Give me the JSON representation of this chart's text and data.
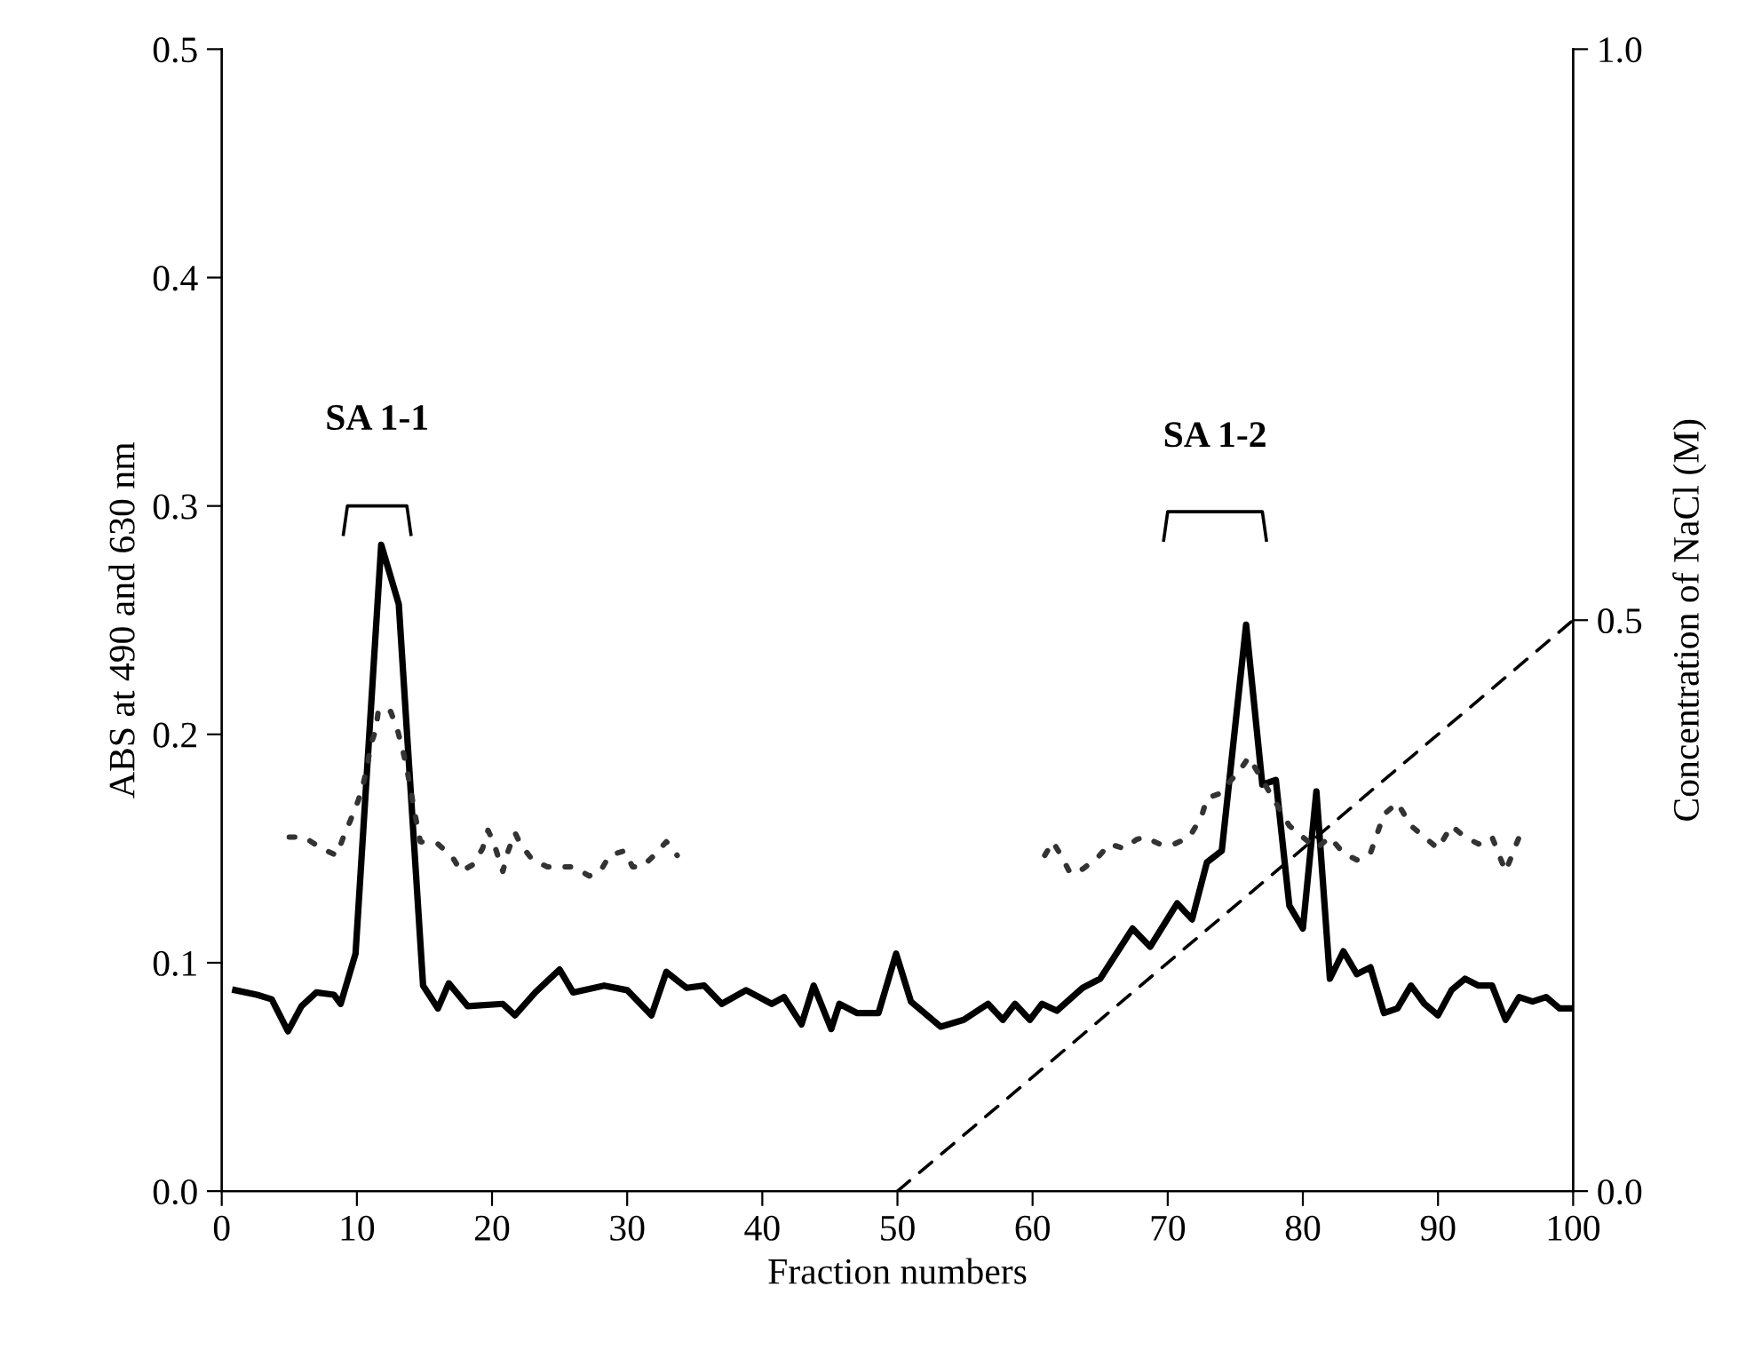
{
  "chart_data": {
    "type": "line",
    "xlabel": "Fraction numbers",
    "ylabel": "ABS at 490 and 630 nm",
    "y2label": "Concentration of NaCl (M)",
    "xlim": [
      0,
      100
    ],
    "xticks": [
      0,
      10,
      20,
      30,
      40,
      50,
      60,
      70,
      80,
      90,
      100
    ],
    "ylim": [
      0,
      0.5
    ],
    "yticks": [
      {
        "value": 0,
        "label": "0.0"
      },
      0.1,
      0.2,
      0.3,
      0.4,
      0.5
    ],
    "y2lim": [
      0,
      1.0
    ],
    "y2ticks": [
      {
        "value": 0,
        "label": "0.0"
      },
      0.5,
      {
        "value": 1,
        "label": "1.0"
      }
    ],
    "grid": false,
    "legend": false,
    "annotations": [
      "SA 1-1",
      "SA 1-2"
    ],
    "series": [
      {
        "color": "#000000",
        "line_style": "solid",
        "x": [
          1,
          2.6,
          3.7,
          4.9,
          5.9,
          7,
          8.3,
          8.8,
          9.9,
          11.8,
          13.1,
          14.9,
          16,
          16.8,
          18.2,
          20.8,
          21.7,
          23.2,
          25,
          26,
          28.3,
          30,
          31.8,
          32.9,
          34.4,
          35.7,
          37,
          38.8,
          40.7,
          41.6,
          42.9,
          43.8,
          45.1,
          45.7,
          47,
          48.6,
          49.9,
          51,
          53.2,
          54.9,
          56.7,
          57.8,
          58.7,
          59.8,
          60.7,
          61.8,
          63.7,
          65,
          67.4,
          68.7,
          70.7,
          71.8,
          72.9,
          74,
          75.8,
          77,
          78,
          79,
          80,
          81,
          82,
          83,
          84,
          85,
          86,
          87,
          88,
          89,
          90,
          91,
          92,
          93,
          94,
          95,
          96,
          97,
          98,
          99,
          100
        ],
        "values": [
          0.088,
          0.086,
          0.084,
          0.07,
          0.081,
          0.087,
          0.086,
          0.082,
          0.104,
          0.283,
          0.257,
          0.09,
          0.08,
          0.091,
          0.081,
          0.082,
          0.077,
          0.087,
          0.097,
          0.087,
          0.09,
          0.088,
          0.077,
          0.096,
          0.089,
          0.09,
          0.082,
          0.088,
          0.082,
          0.085,
          0.073,
          0.09,
          0.071,
          0.082,
          0.078,
          0.078,
          0.104,
          0.083,
          0.072,
          0.075,
          0.082,
          0.075,
          0.082,
          0.075,
          0.082,
          0.079,
          0.089,
          0.093,
          0.115,
          0.107,
          0.126,
          0.119,
          0.144,
          0.149,
          0.248,
          0.178,
          0.18,
          0.125,
          0.115,
          0.175,
          0.093,
          0.105,
          0.095,
          0.098,
          0.078,
          0.08,
          0.09,
          0.082,
          0.077,
          0.088,
          0.093,
          0.09,
          0.09,
          0.075,
          0.085,
          0.083,
          0.085,
          0.08,
          0.08
        ]
      },
      {
        "color": "#333333",
        "line_style": "dotted",
        "x": [
          5,
          6.1,
          7.4,
          8.5,
          9,
          9.5,
          10.1,
          10.5,
          10.8,
          11,
          11.4,
          11.6,
          12.5,
          13,
          13.4,
          13.7,
          14,
          14.3,
          14.7,
          16,
          17.1,
          17.7,
          18.6,
          19.3,
          19.7,
          20.1,
          20.8,
          21.2,
          21.7,
          22.1,
          23,
          24.1,
          25.2,
          26,
          27.2,
          28,
          28.7,
          29.8,
          30.4,
          31.1,
          32,
          32.9,
          33.7,
          null,
          60.9,
          61.5,
          62.2,
          62.8,
          63.7,
          64.8,
          65.7,
          66.8,
          67.7,
          68.3,
          69.4,
          70.5,
          71.6,
          72.5,
          72.9,
          73.8,
          74.7,
          75.3,
          76,
          77,
          78,
          79,
          80,
          81,
          82,
          83,
          84,
          85,
          86,
          87,
          88,
          89,
          90,
          91,
          92,
          93,
          94,
          95,
          96
        ],
        "values": [
          0.155,
          0.155,
          0.15,
          0.147,
          0.155,
          0.162,
          0.171,
          0.179,
          0.187,
          0.195,
          0.202,
          0.211,
          0.21,
          0.202,
          0.193,
          0.185,
          0.175,
          0.165,
          0.153,
          0.152,
          0.146,
          0.14,
          0.143,
          0.15,
          0.158,
          0.153,
          0.14,
          0.149,
          0.157,
          0.152,
          0.145,
          0.142,
          0.142,
          0.142,
          0.138,
          0.14,
          0.147,
          0.149,
          0.142,
          0.142,
          0.147,
          0.153,
          0.147,
          null,
          0.147,
          0.153,
          0.146,
          0.139,
          0.141,
          0.146,
          0.152,
          0.15,
          0.154,
          0.155,
          0.152,
          0.152,
          0.155,
          0.164,
          0.172,
          0.174,
          0.18,
          0.184,
          0.19,
          0.18,
          0.17,
          0.16,
          0.155,
          0.15,
          0.155,
          0.148,
          0.145,
          0.148,
          0.165,
          0.17,
          0.16,
          0.155,
          0.15,
          0.16,
          0.155,
          0.152,
          0.155,
          0.14,
          0.155
        ]
      },
      {
        "color": "#000000",
        "line_style": "dashed",
        "axis": "y2",
        "x": [
          50,
          100
        ],
        "values": [
          0.0,
          0.5
        ]
      }
    ]
  }
}
